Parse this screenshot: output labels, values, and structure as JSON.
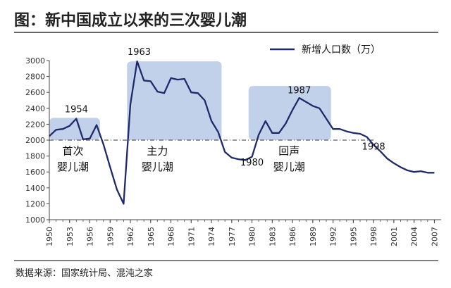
{
  "chart_data": {
    "type": "line",
    "title": "图：新中国成立以来的三次婴儿潮",
    "source": "数据来源：国家统计局、混沌之家",
    "legend": {
      "placement": "top-right",
      "entries": [
        "新增人口数（万）"
      ]
    },
    "ylim": [
      1000,
      3000
    ],
    "yticks": [
      1000,
      1200,
      1400,
      1600,
      1800,
      2000,
      2200,
      2400,
      2600,
      2800,
      3000
    ],
    "xlim": [
      1950,
      2008
    ],
    "xticks": [
      "1950",
      "1953",
      "1956",
      "1959",
      "1962",
      "1965",
      "1968",
      "1971",
      "1974",
      "1977",
      "1980",
      "1983",
      "1986",
      "1989",
      "1992",
      "1995",
      "1998",
      "2001",
      "2004",
      "2007"
    ],
    "reference_line": 2000,
    "series": [
      {
        "name": "新增人口数（万）",
        "color": "#1f2a6b",
        "x": [
          1950,
          1951,
          1952,
          1953,
          1954,
          1955,
          1956,
          1957,
          1958,
          1959,
          1960,
          1961,
          1962,
          1963,
          1964,
          1965,
          1966,
          1967,
          1968,
          1969,
          1970,
          1971,
          1972,
          1973,
          1974,
          1975,
          1976,
          1977,
          1978,
          1979,
          1980,
          1981,
          1982,
          1983,
          1984,
          1985,
          1986,
          1987,
          1988,
          1989,
          1990,
          1991,
          1992,
          1993,
          1994,
          1995,
          1996,
          1997,
          1998,
          1999,
          2000,
          2001,
          2002,
          2003,
          2004,
          2005,
          2006,
          2007
        ],
        "y": [
          2050,
          2130,
          2140,
          2180,
          2270,
          2010,
          2020,
          2190,
          1950,
          1660,
          1380,
          1200,
          2450,
          2990,
          2750,
          2740,
          2610,
          2590,
          2780,
          2760,
          2770,
          2600,
          2590,
          2500,
          2240,
          2100,
          1850,
          1780,
          1760,
          1750,
          1790,
          2070,
          2240,
          2090,
          2090,
          2210,
          2380,
          2530,
          2480,
          2430,
          2400,
          2270,
          2140,
          2140,
          2110,
          2090,
          2080,
          2040,
          1940,
          1860,
          1770,
          1710,
          1660,
          1620,
          1600,
          1610,
          1590,
          1590
        ]
      }
    ],
    "highlights": [
      {
        "x0": 1950,
        "x1": 1957.5,
        "y0": 2000,
        "y1": 2280,
        "label_lines": [
          "首次",
          "婴儿潮"
        ],
        "label_x": 1953.5,
        "label_y": [
          1820,
          1620
        ]
      },
      {
        "x0": 1961.5,
        "x1": 1975.5,
        "y0": 2000,
        "y1": 2990,
        "label_lines": [
          "主力",
          "婴儿潮"
        ],
        "label_x": 1966,
        "label_y": [
          1820,
          1620
        ]
      },
      {
        "x0": 1979.5,
        "x1": 1991.7,
        "y0": 2000,
        "y1": 2680,
        "label_lines": [
          "回声",
          "婴儿潮"
        ],
        "label_x": 1985.5,
        "label_y": [
          1820,
          1620
        ]
      }
    ],
    "annotations": [
      {
        "text": "1954",
        "x": 1954,
        "y": 2350
      },
      {
        "text": "1963",
        "x": 1963.3,
        "y": 3070
      },
      {
        "text": "1987",
        "x": 1987,
        "y": 2590
      },
      {
        "text": "1980",
        "x": 1980,
        "y": 1680
      },
      {
        "text": "1998",
        "x": 1998,
        "y": 1880
      }
    ]
  }
}
